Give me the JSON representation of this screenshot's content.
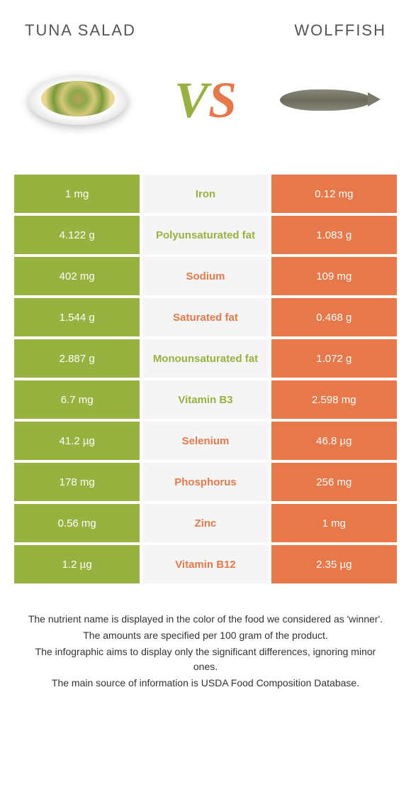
{
  "header": {
    "left": "Tuna salad",
    "right": "Wolffish"
  },
  "vs": {
    "v": "V",
    "s": "S"
  },
  "colors": {
    "green": "#97b23e",
    "orange": "#e67849",
    "mid_bg": "#f5f5f5",
    "white": "#ffffff",
    "text": "#333333"
  },
  "rows": [
    {
      "left": "1 mg",
      "mid": "Iron",
      "right": "0.12 mg",
      "winner": "left"
    },
    {
      "left": "4.122 g",
      "mid": "Polyunsaturated fat",
      "right": "1.083 g",
      "winner": "left"
    },
    {
      "left": "402 mg",
      "mid": "Sodium",
      "right": "109 mg",
      "winner": "right"
    },
    {
      "left": "1.544 g",
      "mid": "Saturated fat",
      "right": "0.468 g",
      "winner": "right"
    },
    {
      "left": "2.887 g",
      "mid": "Monounsaturated fat",
      "right": "1.072 g",
      "winner": "left"
    },
    {
      "left": "6.7 mg",
      "mid": "Vitamin B3",
      "right": "2.598 mg",
      "winner": "left"
    },
    {
      "left": "41.2 µg",
      "mid": "Selenium",
      "right": "46.8 µg",
      "winner": "right"
    },
    {
      "left": "178 mg",
      "mid": "Phosphorus",
      "right": "256 mg",
      "winner": "right"
    },
    {
      "left": "0.56 mg",
      "mid": "Zinc",
      "right": "1 mg",
      "winner": "right"
    },
    {
      "left": "1.2 µg",
      "mid": "Vitamin B12",
      "right": "2.35 µg",
      "winner": "right"
    }
  ],
  "footer": {
    "l1": "The nutrient name is displayed in the color of the food we considered as 'winner'.",
    "l2": "The amounts are specified per 100 gram of the product.",
    "l3": "The infographic aims to display only the significant differences, ignoring minor ones.",
    "l4": "The main source of information is USDA Food Composition Database."
  }
}
